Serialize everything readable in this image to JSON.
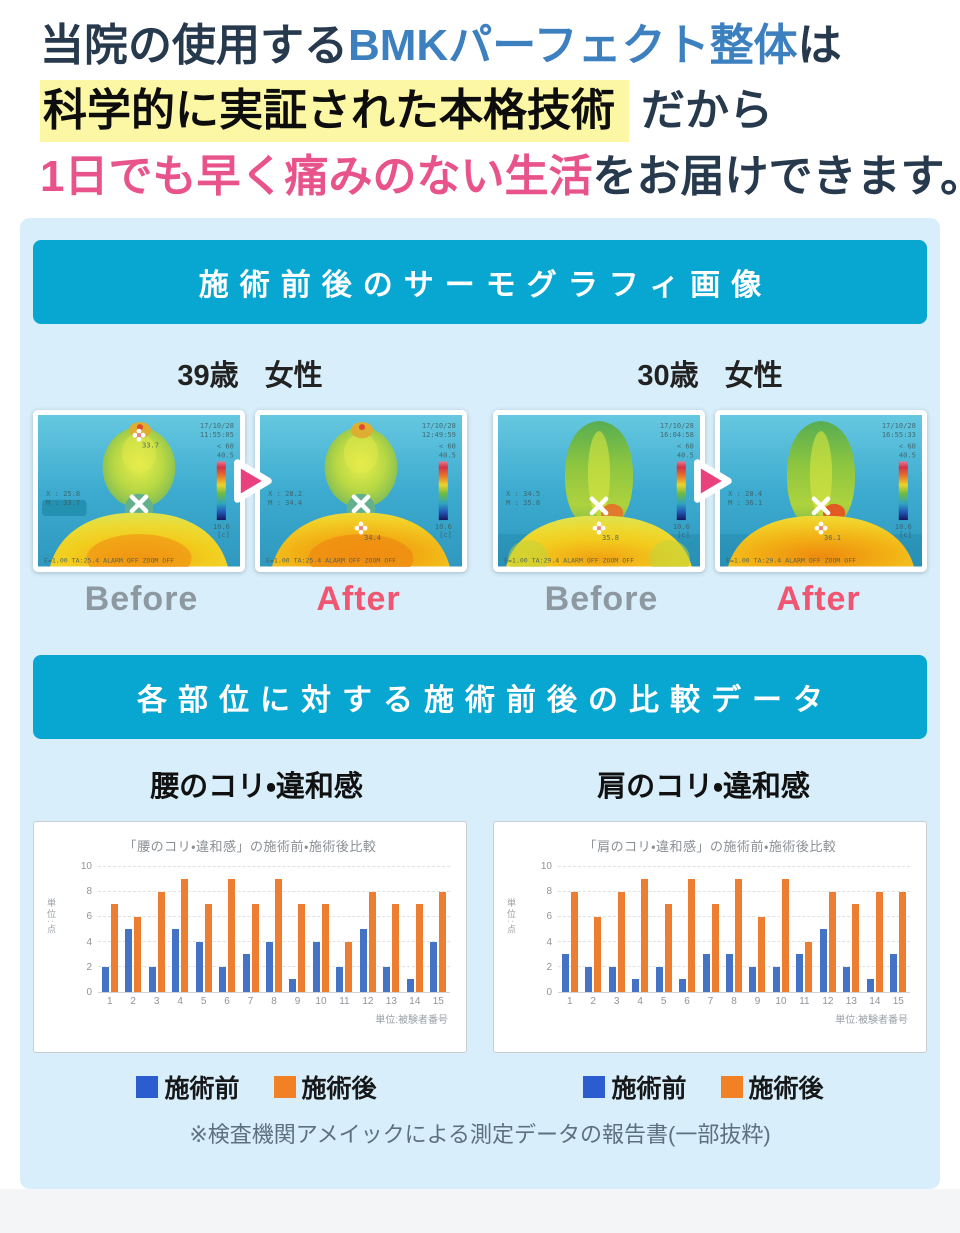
{
  "headline": {
    "line1_pre": "当院の使用する",
    "line1_accent": "BMKパーフェクト整体",
    "line1_post": "は",
    "line2_highlight": "科学的に実証された本格技術",
    "line2_post": "だから",
    "line3_accent": "1日でも早く痛みのない生活",
    "line3_post": "をお届けできます。",
    "colors": {
      "navy": "#27394d",
      "accent_blue": "#3c80bf",
      "accent_pink": "#e9538b",
      "highlight_bg": "#fbf7a4"
    }
  },
  "thermo_section": {
    "header": "施術前後のサーモグラフィ画像",
    "before_label": "Before",
    "after_label": "After",
    "pairs": [
      {
        "age": "39歳",
        "sex": "女性",
        "before": {
          "date": "17/10/28",
          "time": "11:55:05",
          "gain": "<  60",
          "t_max": "40.5",
          "t_min": "10.6",
          "t_unit": "[c]",
          "x_line": "X : 25.8",
          "m_line": "M : 33.7",
          "spot": "33.7",
          "bottom_line": "E=1.00 TA:25.4 ALARM OFF  ZOOM OFF"
        },
        "after": {
          "date": "17/10/28",
          "time": "12:49:59",
          "gain": "<  60",
          "t_max": "40.5",
          "t_min": "10.6",
          "t_unit": "[c]",
          "x_line": "X : 28.2",
          "m_line": "M : 34.4",
          "spot": "34.4",
          "bottom_line": "E=1.00 TA:25.4 ALARM OFF  ZOOM OFF"
        }
      },
      {
        "age": "30歳",
        "sex": "女性",
        "before": {
          "date": "17/10/28",
          "time": "16:04:58",
          "gain": "<  60",
          "t_max": "40.5",
          "t_min": "10.6",
          "t_unit": "[c]",
          "x_line": "X : 34.5",
          "m_line": "M : 35.8",
          "spot": "35.8",
          "bottom_line": "E=1.00 TA:29.4 ALARM OFF  ZOOM OFF"
        },
        "after": {
          "date": "17/10/28",
          "time": "16:55:33",
          "gain": "<  60",
          "t_max": "40.5",
          "t_min": "10.6",
          "t_unit": "[c]",
          "x_line": "X : 28.4",
          "m_line": "M : 36.1",
          "spot": "36.1",
          "bottom_line": "E=1.00 TA:29.4 ALARM OFF  ZOOM OFF"
        }
      }
    ]
  },
  "data_section": {
    "header": "各部位に対する施術前後の比較データ",
    "legend_before": "施術前",
    "legend_after": "施術後",
    "legend_before_color": "#2b5dd0",
    "legend_after_color": "#f28126",
    "note": "※検査機関アメイックによる測定データの報告書(一部抜粋)"
  },
  "chart_data": [
    {
      "type": "bar",
      "section_title": "腰のコリ・違和感",
      "title": "「腰のコリ・違和感」の施術前・施術後比較",
      "categories": [
        "1",
        "2",
        "3",
        "4",
        "5",
        "6",
        "7",
        "8",
        "9",
        "10",
        "11",
        "12",
        "13",
        "14",
        "15"
      ],
      "series": [
        {
          "name": "施術前",
          "key": "before",
          "color": "#4472c4",
          "values": [
            2,
            5,
            2,
            5,
            4,
            2,
            3,
            4,
            1,
            4,
            2,
            5,
            2,
            1,
            4
          ]
        },
        {
          "name": "施術後",
          "key": "after",
          "color": "#ed7d31",
          "values": [
            7,
            6,
            8,
            9,
            7,
            9,
            7,
            9,
            7,
            7,
            4,
            8,
            7,
            7,
            8
          ]
        }
      ],
      "ylabel": "単位:点",
      "xcaption": "単位:被験者番号",
      "ylim": [
        0,
        10
      ],
      "yticks": [
        0,
        2,
        4,
        6,
        8,
        10
      ],
      "grid": true,
      "legend_position": "below"
    },
    {
      "type": "bar",
      "section_title": "肩のコリ・違和感",
      "title": "「肩のコリ・違和感」の施術前・施術後比較",
      "categories": [
        "1",
        "2",
        "3",
        "4",
        "5",
        "6",
        "7",
        "8",
        "9",
        "10",
        "11",
        "12",
        "13",
        "14",
        "15"
      ],
      "series": [
        {
          "name": "施術前",
          "key": "before",
          "color": "#4472c4",
          "values": [
            3,
            2,
            2,
            1,
            2,
            1,
            3,
            3,
            2,
            2,
            3,
            5,
            2,
            1,
            3
          ]
        },
        {
          "name": "施術後",
          "key": "after",
          "color": "#ed7d31",
          "values": [
            8,
            6,
            8,
            9,
            7,
            9,
            7,
            9,
            6,
            9,
            4,
            8,
            7,
            8,
            8
          ]
        }
      ],
      "ylabel": "単位:点",
      "xcaption": "単位:被験者番号",
      "ylim": [
        0,
        10
      ],
      "yticks": [
        0,
        2,
        4,
        6,
        8,
        10
      ],
      "grid": true,
      "legend_position": "below"
    }
  ]
}
